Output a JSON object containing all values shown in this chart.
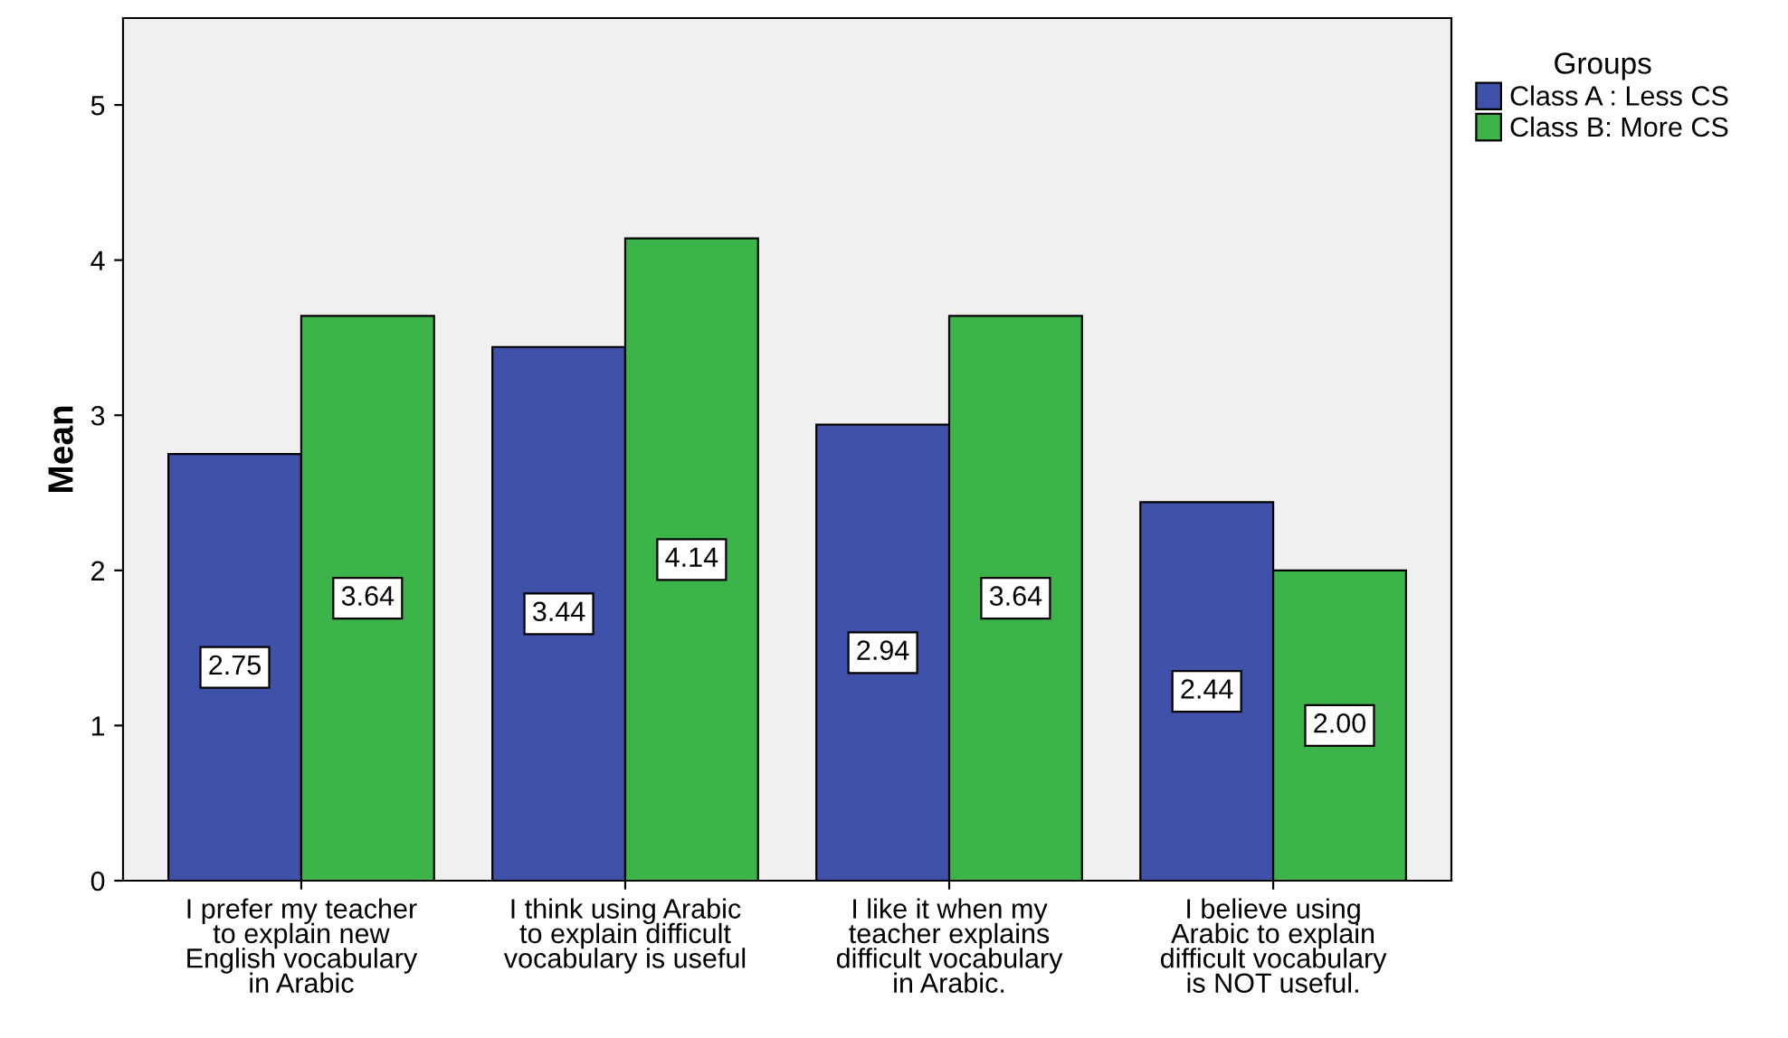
{
  "chart_data": {
    "type": "bar",
    "ylabel": "Mean",
    "legend_title": "Groups",
    "legend": "top right",
    "categories": [
      "I prefer my teacher\nto explain new\nEnglish vocabulary\nin Arabic",
      "I think using Arabic\nto explain difficult\nvocabulary is useful",
      "I like it when my\nteacher explains\ndifficult vocabulary\nin Arabic.",
      "I believe using\nArabic to explain\ndifficult vocabulary\nis NOT useful."
    ],
    "series": [
      {
        "name": "Class A : Less CS",
        "color": "#3f51a8",
        "values": [
          2.75,
          3.44,
          2.94,
          2.44
        ],
        "value_labels": [
          "2.75",
          "3.44",
          "2.94",
          "2.44"
        ]
      },
      {
        "name": "Class B: More CS",
        "color": "#3cb44a",
        "values": [
          3.64,
          4.14,
          3.64,
          2.0
        ],
        "value_labels": [
          "3.64",
          "4.14",
          "3.64",
          "2.00"
        ]
      }
    ],
    "ylim": [
      0,
      5.56
    ],
    "yticks": [
      0,
      1,
      2,
      3,
      4,
      5
    ],
    "grid": false
  }
}
